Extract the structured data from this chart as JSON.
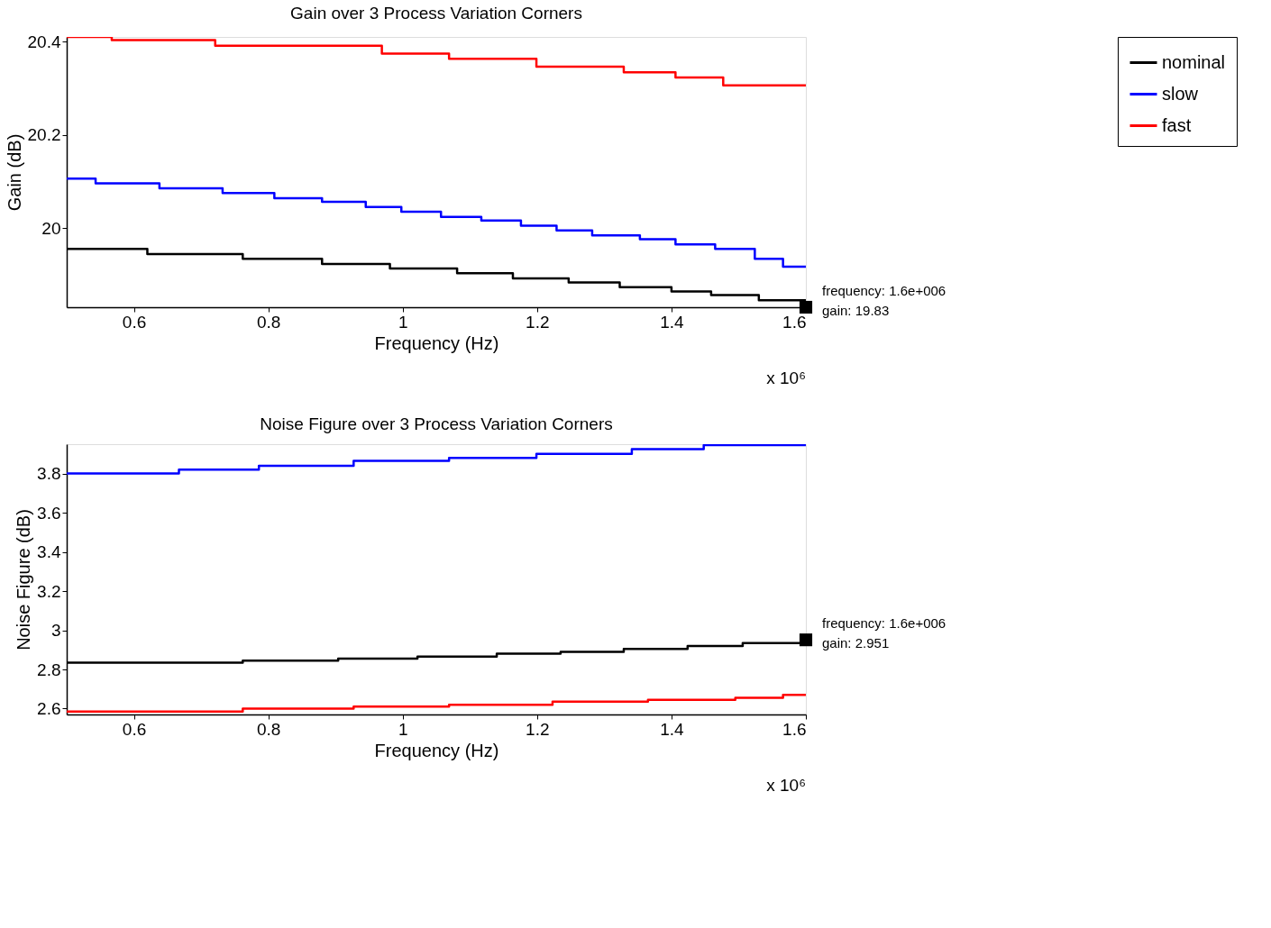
{
  "chart_data": [
    {
      "type": "step",
      "title": "Gain over 3 Process Variation Corners",
      "xlabel": "Frequency (Hz)",
      "ylabel": "Gain (dB)",
      "xlim": [
        0.5,
        1.6
      ],
      "xticks": [
        0.6,
        0.8,
        1,
        1.2,
        1.4,
        1.6
      ],
      "ylim": [
        19.83,
        20.41
      ],
      "yticks": [
        20,
        20.2,
        20.4
      ],
      "legend": "right",
      "grid": false,
      "series": [
        {
          "name": "nominal",
          "color": "#000000",
          "x": [
            0.5,
            0.62,
            0.762,
            0.88,
            0.981,
            1.081,
            1.164,
            1.247,
            1.323,
            1.4,
            1.459,
            1.53,
            1.6
          ],
          "values": [
            19.955,
            19.944,
            19.934,
            19.923,
            19.913,
            19.903,
            19.892,
            19.883,
            19.873,
            19.864,
            19.856,
            19.845,
            19.845
          ]
        },
        {
          "name": "slow",
          "color": "#0000ff",
          "x": [
            0.5,
            0.543,
            0.638,
            0.732,
            0.809,
            0.88,
            0.945,
            0.998,
            1.057,
            1.117,
            1.176,
            1.229,
            1.282,
            1.353,
            1.406,
            1.465,
            1.524,
            1.566,
            1.6
          ],
          "values": [
            20.106,
            20.096,
            20.085,
            20.075,
            20.064,
            20.056,
            20.045,
            20.035,
            20.024,
            20.016,
            20.005,
            19.995,
            19.984,
            19.976,
            19.965,
            19.955,
            19.934,
            19.917,
            19.917
          ]
        },
        {
          "name": "fast",
          "color": "#ff0000",
          "x": [
            0.5,
            0.567,
            0.721,
            0.969,
            1.069,
            1.199,
            1.329,
            1.406,
            1.477,
            1.6
          ],
          "values": [
            20.41,
            20.403,
            20.391,
            20.374,
            20.363,
            20.346,
            20.334,
            20.323,
            20.306,
            20.306
          ]
        }
      ],
      "annotations": [
        {
          "text": "frequency: 1.6e+006\ngain: 19.83",
          "x": 1.6,
          "y": 19.83
        },
        "x 10⁶"
      ]
    },
    {
      "type": "step",
      "title": "Noise Figure over 3 Process Variation Corners",
      "xlabel": "Frequency (Hz)",
      "ylabel": "Noise Figure (dB)",
      "xlim": [
        0.5,
        1.6
      ],
      "xticks": [
        0.6,
        0.8,
        1,
        1.2,
        1.4,
        1.6
      ],
      "ylim": [
        2.57,
        3.95
      ],
      "yticks": [
        2.6,
        2.8,
        3,
        3.2,
        3.4,
        3.6,
        3.8
      ],
      "legend": "right",
      "grid": false,
      "series": [
        {
          "name": "nominal",
          "color": "#000000",
          "x": [
            0.5,
            0.762,
            0.904,
            1.022,
            1.14,
            1.235,
            1.329,
            1.424,
            1.506,
            1.6
          ],
          "values": [
            2.835,
            2.845,
            2.855,
            2.865,
            2.88,
            2.89,
            2.905,
            2.92,
            2.935,
            2.951
          ]
        },
        {
          "name": "slow",
          "color": "#0000ff",
          "x": [
            0.5,
            0.667,
            0.786,
            0.927,
            1.069,
            1.199,
            1.341,
            1.448,
            1.6
          ],
          "values": [
            3.8,
            3.82,
            3.84,
            3.865,
            3.88,
            3.9,
            3.925,
            3.945,
            3.945
          ]
        },
        {
          "name": "fast",
          "color": "#ff0000",
          "x": [
            0.5,
            0.762,
            0.927,
            1.069,
            1.223,
            1.365,
            1.495,
            1.566,
            1.6
          ],
          "values": [
            2.585,
            2.6,
            2.61,
            2.62,
            2.635,
            2.645,
            2.655,
            2.67,
            2.67
          ]
        }
      ],
      "annotations": [
        {
          "text": "frequency: 1.6e+006\ngain: 2.951",
          "x": 1.6,
          "y": 2.951
        },
        "x 10⁶"
      ]
    }
  ]
}
